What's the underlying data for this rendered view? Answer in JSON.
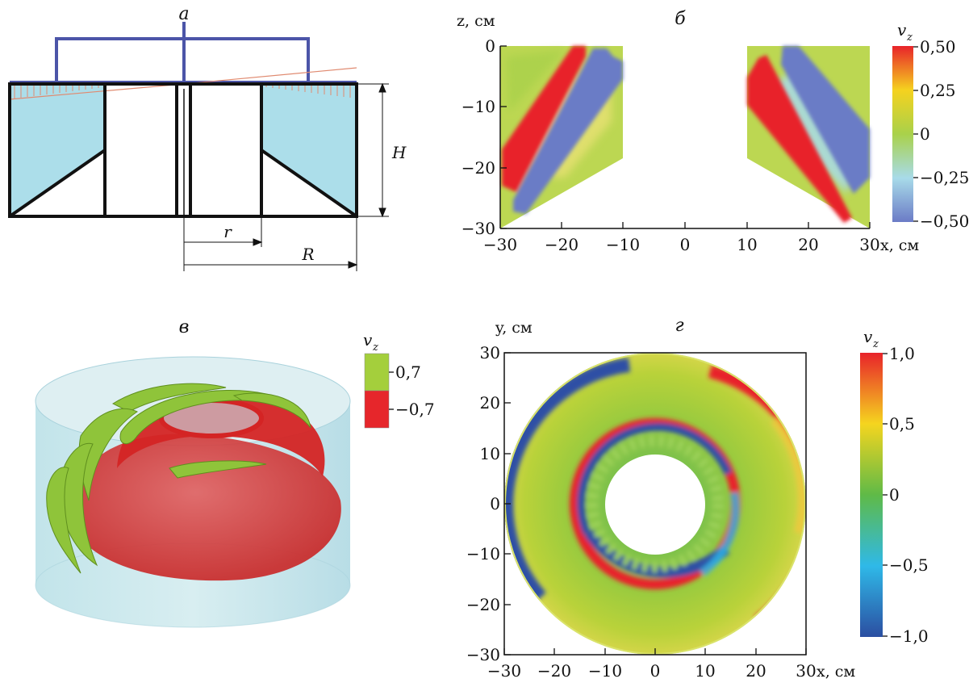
{
  "panels": {
    "a": {
      "label": "а",
      "dim_H": "H",
      "dim_r": "r",
      "dim_R": "R"
    },
    "b": {
      "label": "б",
      "z_axis_label": "z, см",
      "x_axis_label": "x, см",
      "colorbar_title": "v",
      "colorbar_sub": "z",
      "colorbar_ticks": [
        "0,50",
        "0,25",
        "0",
        "−0,25",
        "−0,50"
      ],
      "y_ticks": [
        "0",
        "−10",
        "−20",
        "−30"
      ],
      "x_ticks": [
        "−30",
        "−20",
        "−10",
        "0",
        "10",
        "20",
        "30"
      ]
    },
    "c": {
      "label": "в",
      "legend_title": "v",
      "legend_sub": "z",
      "legend_pos": "0,7",
      "legend_neg": "−0,7",
      "colors": {
        "pos": "#9ecb3a",
        "neg": "#e6262b",
        "glass": "#bfe3ea"
      }
    },
    "d": {
      "label": "г",
      "y_axis_label": "y, см",
      "x_axis_label": "x, см",
      "colorbar_title": "v",
      "colorbar_sub": "z",
      "colorbar_ticks": [
        "1,0",
        "0,5",
        "0",
        "−0,5",
        "−1,0"
      ],
      "y_ticks": [
        "30",
        "20",
        "10",
        "0",
        "−10",
        "−20",
        "−30"
      ],
      "x_ticks": [
        "−30",
        "−20",
        "−10",
        "0",
        "10",
        "20",
        "30"
      ]
    }
  },
  "chart_data": [
    {
      "type": "heatmap",
      "panel": "б",
      "xlim": [
        -30,
        30
      ],
      "ylim": [
        -30,
        0
      ],
      "color_range": [
        -0.5,
        0.5
      ],
      "xlabel": "x, см",
      "ylabel": "z, см"
    },
    {
      "type": "heatmap",
      "panel": "г",
      "xlim": [
        -30,
        30
      ],
      "ylim": [
        -30,
        30
      ],
      "color_range": [
        -1.0,
        1.0
      ],
      "inner_radius": 10,
      "outer_radius": 30,
      "xlabel": "x, см",
      "ylabel": "y, см"
    }
  ]
}
